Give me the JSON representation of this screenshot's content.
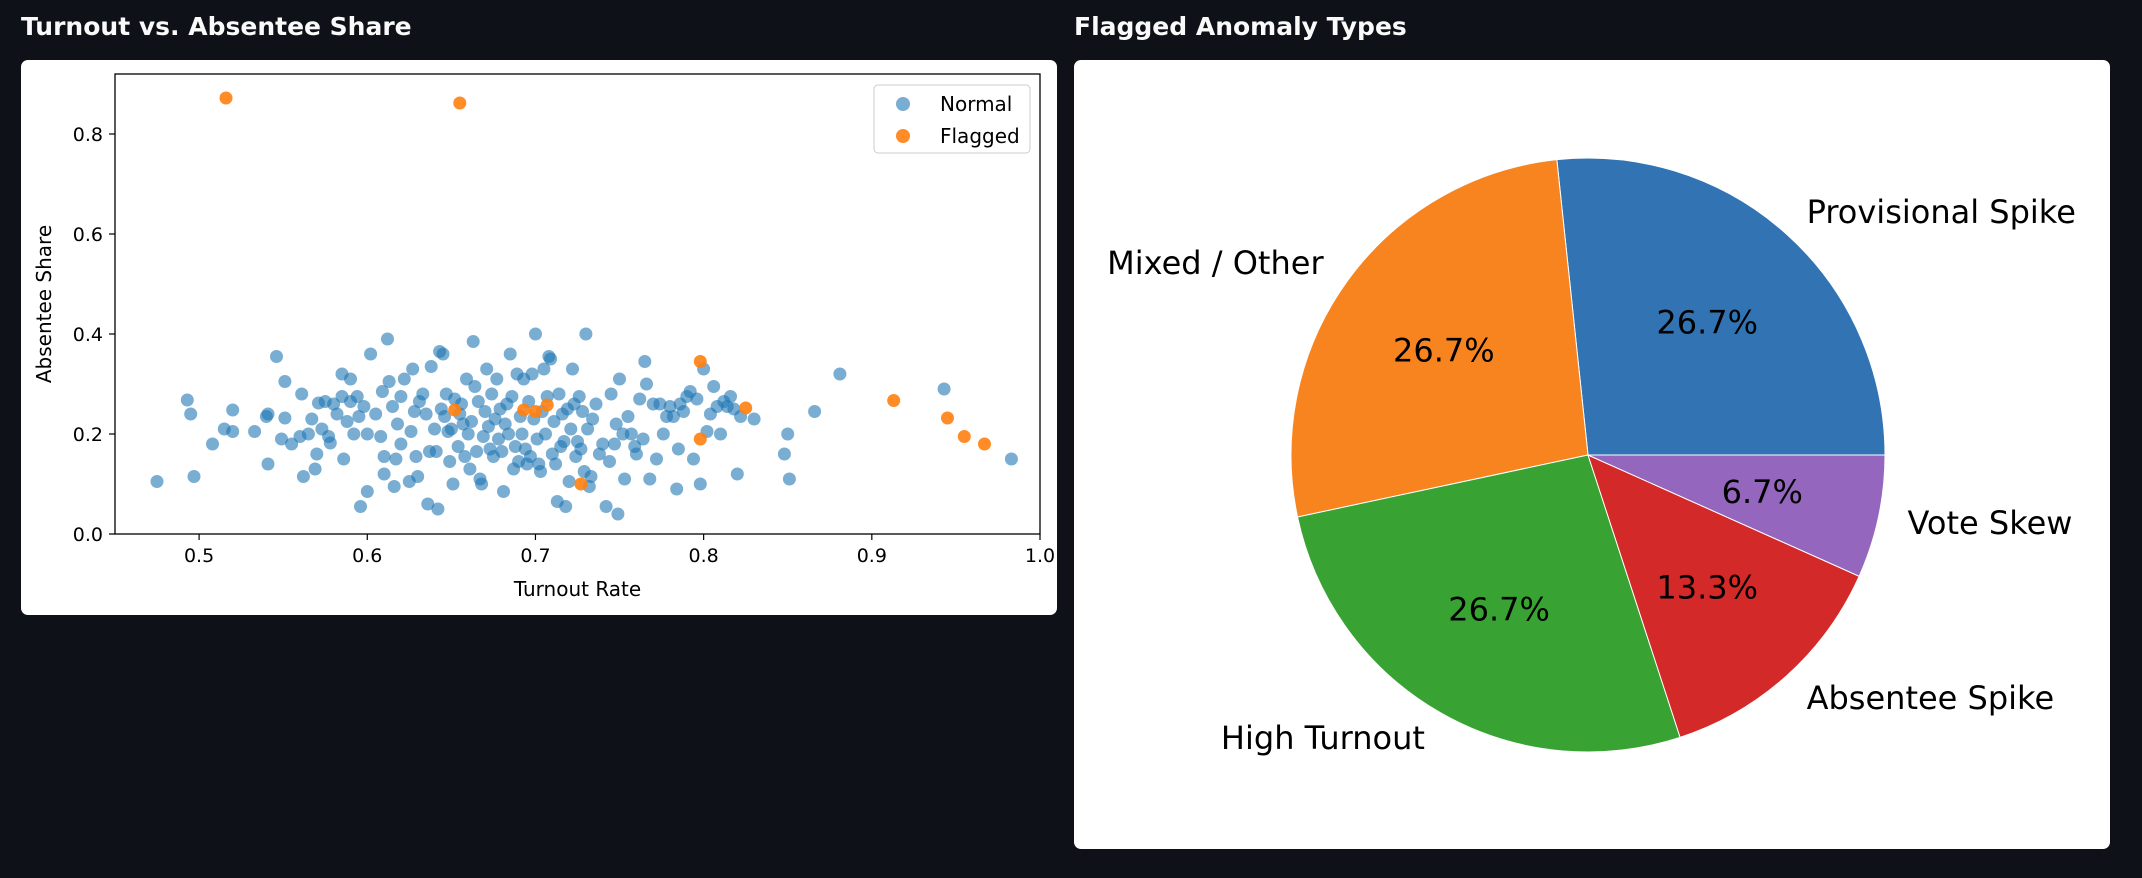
{
  "panels": {
    "left_title": "Turnout vs. Absentee Share",
    "right_title": "Flagged Anomaly Types"
  },
  "chart_data": [
    {
      "type": "scatter",
      "title": "Turnout vs. Absentee Share",
      "xlabel": "Turnout Rate",
      "ylabel": "Absentee Share",
      "xlim": [
        0.45,
        1.0
      ],
      "ylim": [
        0.0,
        0.92
      ],
      "xticks": [
        "0.5",
        "0.6",
        "0.7",
        "0.8",
        "0.9",
        "1.0"
      ],
      "yticks": [
        "0.0",
        "0.2",
        "0.4",
        "0.6",
        "0.8"
      ],
      "legend": "top-right",
      "grid": false,
      "series": [
        {
          "name": "Normal",
          "color": "#1f77b4",
          "alpha": 0.6,
          "points": [
            [
              0.475,
              0.105
            ],
            [
              0.493,
              0.268
            ],
            [
              0.495,
              0.24
            ],
            [
              0.497,
              0.115
            ],
            [
              0.508,
              0.18
            ],
            [
              0.515,
              0.21
            ],
            [
              0.52,
              0.205
            ],
            [
              0.52,
              0.248
            ],
            [
              0.533,
              0.205
            ],
            [
              0.54,
              0.235
            ],
            [
              0.541,
              0.24
            ],
            [
              0.541,
              0.14
            ],
            [
              0.546,
              0.355
            ],
            [
              0.549,
              0.19
            ],
            [
              0.551,
              0.305
            ],
            [
              0.551,
              0.232
            ],
            [
              0.555,
              0.18
            ],
            [
              0.56,
              0.195
            ],
            [
              0.561,
              0.28
            ],
            [
              0.562,
              0.115
            ],
            [
              0.565,
              0.2
            ],
            [
              0.567,
              0.23
            ],
            [
              0.569,
              0.13
            ],
            [
              0.57,
              0.16
            ],
            [
              0.571,
              0.262
            ],
            [
              0.573,
              0.21
            ],
            [
              0.575,
              0.265
            ],
            [
              0.577,
              0.195
            ],
            [
              0.578,
              0.182
            ],
            [
              0.58,
              0.26
            ],
            [
              0.582,
              0.24
            ],
            [
              0.585,
              0.275
            ],
            [
              0.585,
              0.32
            ],
            [
              0.586,
              0.15
            ],
            [
              0.588,
              0.225
            ],
            [
              0.59,
              0.31
            ],
            [
              0.59,
              0.265
            ],
            [
              0.592,
              0.2
            ],
            [
              0.594,
              0.275
            ],
            [
              0.595,
              0.235
            ],
            [
              0.596,
              0.055
            ],
            [
              0.598,
              0.255
            ],
            [
              0.6,
              0.2
            ],
            [
              0.6,
              0.085
            ],
            [
              0.602,
              0.36
            ],
            [
              0.605,
              0.24
            ],
            [
              0.608,
              0.195
            ],
            [
              0.609,
              0.285
            ],
            [
              0.61,
              0.155
            ],
            [
              0.61,
              0.12
            ],
            [
              0.612,
              0.39
            ],
            [
              0.613,
              0.305
            ],
            [
              0.615,
              0.255
            ],
            [
              0.616,
              0.095
            ],
            [
              0.617,
              0.15
            ],
            [
              0.618,
              0.22
            ],
            [
              0.62,
              0.275
            ],
            [
              0.62,
              0.18
            ],
            [
              0.622,
              0.31
            ],
            [
              0.625,
              0.105
            ],
            [
              0.626,
              0.205
            ],
            [
              0.627,
              0.33
            ],
            [
              0.628,
              0.245
            ],
            [
              0.629,
              0.155
            ],
            [
              0.63,
              0.115
            ],
            [
              0.631,
              0.265
            ],
            [
              0.633,
              0.28
            ],
            [
              0.635,
              0.24
            ],
            [
              0.636,
              0.06
            ],
            [
              0.637,
              0.165
            ],
            [
              0.638,
              0.335
            ],
            [
              0.64,
              0.21
            ],
            [
              0.641,
              0.165
            ],
            [
              0.642,
              0.05
            ],
            [
              0.643,
              0.365
            ],
            [
              0.644,
              0.25
            ],
            [
              0.645,
              0.36
            ],
            [
              0.646,
              0.235
            ],
            [
              0.647,
              0.28
            ],
            [
              0.648,
              0.205
            ],
            [
              0.649,
              0.145
            ],
            [
              0.65,
              0.21
            ],
            [
              0.651,
              0.1
            ],
            [
              0.652,
              0.27
            ],
            [
              0.654,
              0.175
            ],
            [
              0.655,
              0.24
            ],
            [
              0.656,
              0.26
            ],
            [
              0.657,
              0.22
            ],
            [
              0.658,
              0.155
            ],
            [
              0.659,
              0.31
            ],
            [
              0.66,
              0.2
            ],
            [
              0.661,
              0.13
            ],
            [
              0.662,
              0.225
            ],
            [
              0.663,
              0.385
            ],
            [
              0.664,
              0.295
            ],
            [
              0.665,
              0.165
            ],
            [
              0.666,
              0.265
            ],
            [
              0.667,
              0.11
            ],
            [
              0.668,
              0.1
            ],
            [
              0.669,
              0.195
            ],
            [
              0.67,
              0.245
            ],
            [
              0.671,
              0.33
            ],
            [
              0.672,
              0.215
            ],
            [
              0.673,
              0.17
            ],
            [
              0.674,
              0.28
            ],
            [
              0.675,
              0.155
            ],
            [
              0.676,
              0.23
            ],
            [
              0.677,
              0.31
            ],
            [
              0.678,
              0.19
            ],
            [
              0.679,
              0.25
            ],
            [
              0.68,
              0.165
            ],
            [
              0.681,
              0.085
            ],
            [
              0.682,
              0.22
            ],
            [
              0.683,
              0.26
            ],
            [
              0.684,
              0.2
            ],
            [
              0.685,
              0.36
            ],
            [
              0.686,
              0.275
            ],
            [
              0.687,
              0.13
            ],
            [
              0.688,
              0.175
            ],
            [
              0.689,
              0.32
            ],
            [
              0.69,
              0.145
            ],
            [
              0.691,
              0.235
            ],
            [
              0.692,
              0.2
            ],
            [
              0.693,
              0.31
            ],
            [
              0.694,
              0.17
            ],
            [
              0.695,
              0.14
            ],
            [
              0.696,
              0.265
            ],
            [
              0.697,
              0.155
            ],
            [
              0.698,
              0.32
            ],
            [
              0.699,
              0.23
            ],
            [
              0.7,
              0.4
            ],
            [
              0.701,
              0.19
            ],
            [
              0.702,
              0.14
            ],
            [
              0.703,
              0.125
            ],
            [
              0.704,
              0.245
            ],
            [
              0.705,
              0.33
            ],
            [
              0.706,
              0.2
            ],
            [
              0.707,
              0.275
            ],
            [
              0.708,
              0.355
            ],
            [
              0.709,
              0.35
            ],
            [
              0.71,
              0.16
            ],
            [
              0.711,
              0.225
            ],
            [
              0.712,
              0.14
            ],
            [
              0.713,
              0.065
            ],
            [
              0.714,
              0.28
            ],
            [
              0.715,
              0.175
            ],
            [
              0.716,
              0.24
            ],
            [
              0.717,
              0.185
            ],
            [
              0.718,
              0.055
            ],
            [
              0.719,
              0.25
            ],
            [
              0.72,
              0.105
            ],
            [
              0.721,
              0.21
            ],
            [
              0.722,
              0.33
            ],
            [
              0.723,
              0.26
            ],
            [
              0.724,
              0.155
            ],
            [
              0.725,
              0.185
            ],
            [
              0.726,
              0.275
            ],
            [
              0.727,
              0.17
            ],
            [
              0.728,
              0.245
            ],
            [
              0.729,
              0.125
            ],
            [
              0.73,
              0.4
            ],
            [
              0.731,
              0.21
            ],
            [
              0.732,
              0.095
            ],
            [
              0.733,
              0.115
            ],
            [
              0.734,
              0.23
            ],
            [
              0.736,
              0.26
            ],
            [
              0.738,
              0.16
            ],
            [
              0.74,
              0.18
            ],
            [
              0.742,
              0.055
            ],
            [
              0.744,
              0.145
            ],
            [
              0.745,
              0.28
            ],
            [
              0.747,
              0.18
            ],
            [
              0.748,
              0.22
            ],
            [
              0.749,
              0.04
            ],
            [
              0.75,
              0.31
            ],
            [
              0.752,
              0.2
            ],
            [
              0.753,
              0.11
            ],
            [
              0.755,
              0.235
            ],
            [
              0.757,
              0.2
            ],
            [
              0.759,
              0.175
            ],
            [
              0.76,
              0.16
            ],
            [
              0.762,
              0.27
            ],
            [
              0.764,
              0.19
            ],
            [
              0.765,
              0.345
            ],
            [
              0.766,
              0.3
            ],
            [
              0.768,
              0.11
            ],
            [
              0.77,
              0.26
            ],
            [
              0.772,
              0.15
            ],
            [
              0.774,
              0.26
            ],
            [
              0.776,
              0.2
            ],
            [
              0.778,
              0.235
            ],
            [
              0.78,
              0.255
            ],
            [
              0.782,
              0.235
            ],
            [
              0.784,
              0.09
            ],
            [
              0.785,
              0.17
            ],
            [
              0.786,
              0.26
            ],
            [
              0.788,
              0.245
            ],
            [
              0.79,
              0.275
            ],
            [
              0.792,
              0.285
            ],
            [
              0.794,
              0.15
            ],
            [
              0.796,
              0.27
            ],
            [
              0.798,
              0.1
            ],
            [
              0.8,
              0.33
            ],
            [
              0.802,
              0.205
            ],
            [
              0.804,
              0.24
            ],
            [
              0.806,
              0.295
            ],
            [
              0.808,
              0.255
            ],
            [
              0.81,
              0.2
            ],
            [
              0.812,
              0.265
            ],
            [
              0.814,
              0.255
            ],
            [
              0.816,
              0.275
            ],
            [
              0.818,
              0.25
            ],
            [
              0.82,
              0.12
            ],
            [
              0.822,
              0.235
            ],
            [
              0.83,
              0.23
            ],
            [
              0.848,
              0.16
            ],
            [
              0.85,
              0.2
            ],
            [
              0.851,
              0.11
            ],
            [
              0.866,
              0.245
            ],
            [
              0.881,
              0.32
            ],
            [
              0.943,
              0.29
            ],
            [
              0.983,
              0.15
            ]
          ]
        },
        {
          "name": "Flagged",
          "color": "#ff7f0e",
          "alpha": 0.9,
          "points": [
            [
              0.516,
              0.872
            ],
            [
              0.655,
              0.862
            ],
            [
              0.652,
              0.248
            ],
            [
              0.693,
              0.248
            ],
            [
              0.7,
              0.245
            ],
            [
              0.707,
              0.258
            ],
            [
              0.727,
              0.1
            ],
            [
              0.798,
              0.345
            ],
            [
              0.798,
              0.19
            ],
            [
              0.825,
              0.252
            ],
            [
              0.913,
              0.267
            ],
            [
              0.945,
              0.232
            ],
            [
              0.955,
              0.195
            ],
            [
              0.967,
              0.18
            ]
          ]
        }
      ]
    },
    {
      "type": "pie",
      "title": "Flagged Anomaly Types",
      "start_angle_deg": 0,
      "direction": "counterclockwise",
      "slices": [
        {
          "label": "Provisional Spike",
          "value": 26.7,
          "pct": "26.7%",
          "color": "#3274b3"
        },
        {
          "label": "Mixed / Other",
          "value": 26.7,
          "pct": "26.7%",
          "color": "#f8841f"
        },
        {
          "label": "High Turnout",
          "value": 26.7,
          "pct": "26.7%",
          "color": "#38a333"
        },
        {
          "label": "Absentee Spike",
          "value": 13.3,
          "pct": "13.3%",
          "color": "#d32929"
        },
        {
          "label": "Vote Skew",
          "value": 6.7,
          "pct": "6.7%",
          "color": "#9466bd"
        }
      ]
    }
  ]
}
